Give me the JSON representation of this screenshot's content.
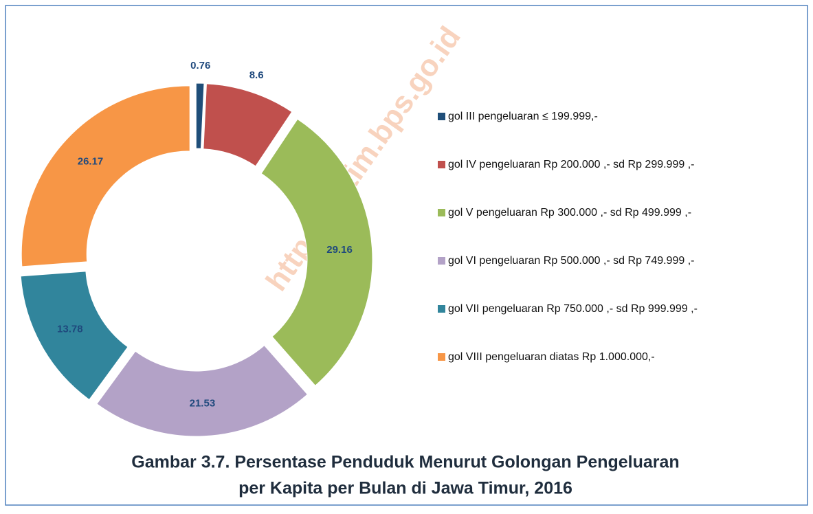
{
  "chart_data": {
    "type": "donut",
    "title": [
      "Gambar 3.7. Persentase Penduduk Menurut Golongan Pengeluaran",
      "per Kapita per Bulan di Jawa Timur, 2016"
    ],
    "watermark": "https://jatim.bps.go.id",
    "categories": [
      "gol III pengeluaran ≤ 199.999,-",
      "gol IV pengeluaran Rp 200.000 ,- sd Rp 299.999 ,-",
      "gol V pengeluaran Rp 300.000 ,- sd Rp 499.999 ,-",
      "gol VI pengeluaran Rp 500.000 ,- sd Rp 749.999 ,-",
      "gol VII pengeluaran Rp 750.000 ,- sd Rp 999.999 ,-",
      "gol VIII pengeluaran diatas Rp 1.000.000,-"
    ],
    "values": [
      0.76,
      8.6,
      29.16,
      21.53,
      13.78,
      26.17
    ],
    "colors": [
      "#1f4e79",
      "#c0504d",
      "#9bbb59",
      "#b3a2c7",
      "#31859c",
      "#f79646"
    ],
    "legend": "right"
  }
}
